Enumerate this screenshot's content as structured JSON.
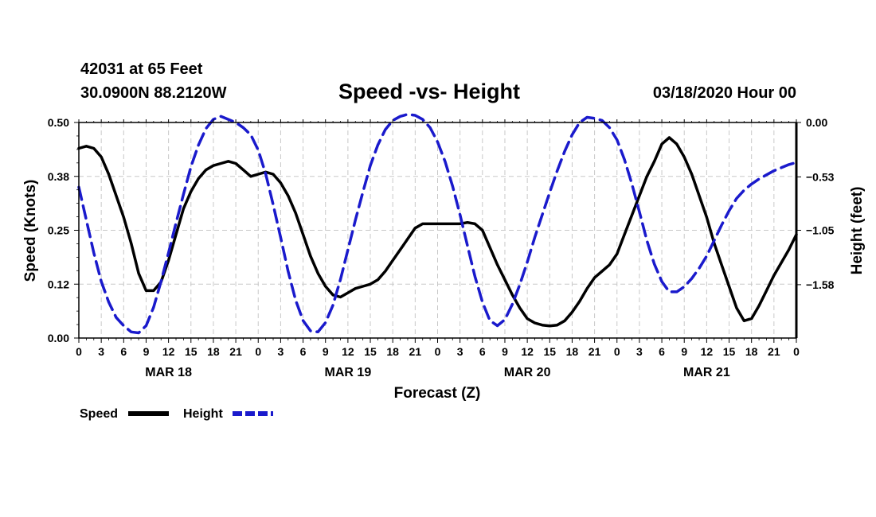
{
  "header": {
    "station": "42031 at 65 Feet",
    "coords": "30.0900N 88.2120W",
    "title": "Speed -vs- Height",
    "timestamp": "03/18/2020 Hour 00"
  },
  "colors": {
    "speed": "#000000",
    "height": "#1a1acc",
    "grid": "#c8c8c8"
  },
  "chart_data": {
    "type": "line",
    "title": "Speed -vs- Height",
    "xlabel": "Forecast (Z)",
    "ylabel": "Speed (Knots)",
    "y2label": "Height (feet)",
    "xlim": [
      0,
      96
    ],
    "ylim": [
      0,
      0.5
    ],
    "y2lim": [
      -2.1,
      0.0
    ],
    "yticks": [
      "0.00",
      "0.12",
      "0.25",
      "0.38",
      "0.50"
    ],
    "y2ticks": [
      {
        "value": 0.0,
        "label": "0.00"
      },
      {
        "value": -0.53,
        "label": "−0.53"
      },
      {
        "value": -1.05,
        "label": "−1.05"
      },
      {
        "value": -1.58,
        "label": "−1.58"
      }
    ],
    "xticks": [
      "0",
      "3",
      "6",
      "9",
      "12",
      "15",
      "18",
      "21",
      "0",
      "3",
      "6",
      "9",
      "12",
      "15",
      "18",
      "21",
      "0",
      "3",
      "6",
      "9",
      "12",
      "15",
      "18",
      "21",
      "0",
      "3",
      "6",
      "9",
      "12",
      "15",
      "18",
      "21",
      "0"
    ],
    "days": [
      "MAR 18",
      "MAR 19",
      "MAR 20",
      "MAR 21"
    ],
    "legend": [
      "Speed",
      "Height"
    ],
    "series": [
      {
        "name": "Speed",
        "axis": "left",
        "style": "solid",
        "x": [
          0,
          1,
          2,
          3,
          4,
          5,
          6,
          7,
          8,
          9,
          10,
          11,
          12,
          13,
          14,
          15,
          16,
          17,
          18,
          19,
          20,
          21,
          22,
          23,
          24,
          25,
          26,
          27,
          28,
          29,
          30,
          31,
          32,
          33,
          34,
          35,
          36,
          37,
          38,
          39,
          40,
          41,
          42,
          43,
          44,
          45,
          46,
          47,
          48,
          49,
          50,
          51,
          52,
          53,
          54,
          55,
          56,
          57,
          58,
          59,
          60,
          61,
          62,
          63,
          64,
          65,
          66,
          67,
          68,
          69,
          70,
          71,
          72,
          73,
          74,
          75,
          76,
          77,
          78,
          79,
          80,
          81,
          82,
          83,
          84,
          85,
          86,
          87,
          88,
          89,
          90,
          91,
          92,
          93,
          94,
          95,
          96
        ],
        "values": [
          0.44,
          0.445,
          0.44,
          0.42,
          0.38,
          0.33,
          0.28,
          0.22,
          0.15,
          0.11,
          0.11,
          0.13,
          0.18,
          0.24,
          0.3,
          0.34,
          0.37,
          0.39,
          0.4,
          0.405,
          0.41,
          0.405,
          0.39,
          0.375,
          0.38,
          0.385,
          0.38,
          0.36,
          0.33,
          0.29,
          0.24,
          0.19,
          0.15,
          0.12,
          0.1,
          0.095,
          0.105,
          0.115,
          0.12,
          0.125,
          0.135,
          0.155,
          0.18,
          0.205,
          0.23,
          0.255,
          0.265,
          0.265,
          0.265,
          0.265,
          0.265,
          0.265,
          0.268,
          0.265,
          0.25,
          0.21,
          0.17,
          0.135,
          0.1,
          0.07,
          0.045,
          0.035,
          0.03,
          0.028,
          0.03,
          0.04,
          0.06,
          0.085,
          0.115,
          0.14,
          0.155,
          0.17,
          0.195,
          0.24,
          0.285,
          0.33,
          0.375,
          0.41,
          0.45,
          0.465,
          0.45,
          0.42,
          0.38,
          0.33,
          0.28,
          0.22,
          0.17,
          0.12,
          0.07,
          0.04,
          0.045,
          0.075,
          0.11,
          0.145,
          0.175,
          0.205,
          0.24
        ]
      },
      {
        "name": "Height",
        "axis": "right",
        "style": "dashed",
        "x": [
          0,
          1,
          2,
          3,
          4,
          5,
          6,
          7,
          8,
          9,
          10,
          11,
          12,
          13,
          14,
          15,
          16,
          17,
          18,
          19,
          20,
          21,
          22,
          23,
          24,
          25,
          26,
          27,
          28,
          29,
          30,
          31,
          32,
          33,
          34,
          35,
          36,
          37,
          38,
          39,
          40,
          41,
          42,
          43,
          44,
          45,
          46,
          47,
          48,
          49,
          50,
          51,
          52,
          53,
          54,
          55,
          56,
          57,
          58,
          59,
          60,
          61,
          62,
          63,
          64,
          65,
          66,
          67,
          68,
          69,
          70,
          71,
          72,
          73,
          74,
          75,
          76,
          77,
          78,
          79,
          80,
          81,
          82,
          83,
          84,
          85,
          86,
          87,
          88,
          89,
          90,
          91,
          92,
          93,
          94,
          95,
          96
        ],
        "values": [
          -0.63,
          -0.95,
          -1.27,
          -1.55,
          -1.75,
          -1.9,
          -1.98,
          -2.04,
          -2.05,
          -1.98,
          -1.8,
          -1.55,
          -1.27,
          -0.98,
          -0.7,
          -0.43,
          -0.22,
          -0.06,
          0.03,
          0.06,
          0.03,
          0.0,
          -0.05,
          -0.12,
          -0.27,
          -0.5,
          -0.8,
          -1.12,
          -1.45,
          -1.73,
          -1.93,
          -2.03,
          -2.04,
          -1.95,
          -1.78,
          -1.53,
          -1.24,
          -0.95,
          -0.68,
          -0.42,
          -0.22,
          -0.07,
          0.02,
          0.06,
          0.08,
          0.07,
          0.03,
          -0.05,
          -0.19,
          -0.38,
          -0.62,
          -0.9,
          -1.2,
          -1.5,
          -1.75,
          -1.93,
          -1.98,
          -1.92,
          -1.77,
          -1.58,
          -1.36,
          -1.12,
          -0.9,
          -0.68,
          -0.47,
          -0.28,
          -0.12,
          0.0,
          0.05,
          0.04,
          0.02,
          -0.05,
          -0.17,
          -0.36,
          -0.6,
          -0.87,
          -1.15,
          -1.38,
          -1.55,
          -1.65,
          -1.65,
          -1.6,
          -1.52,
          -1.42,
          -1.3,
          -1.15,
          -1.0,
          -0.86,
          -0.74,
          -0.66,
          -0.6,
          -0.55,
          -0.51,
          -0.47,
          -0.44,
          -0.41,
          -0.39
        ]
      }
    ]
  }
}
